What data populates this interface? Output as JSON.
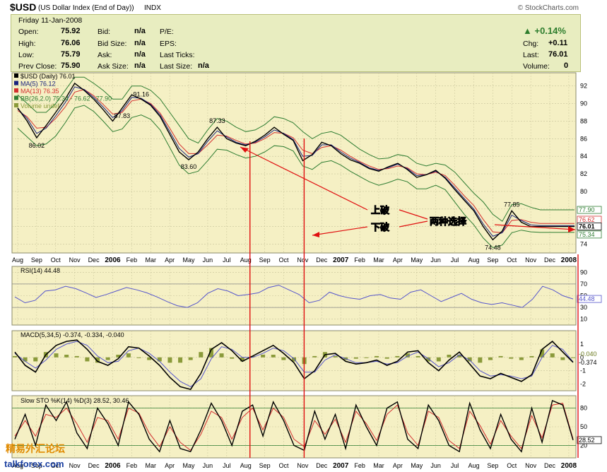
{
  "header": {
    "symbol": "$USD",
    "name": "(US Dollar Index (End of Day))",
    "exchange": "INDX",
    "brand": "© StockCharts.com"
  },
  "quote": {
    "date": "Friday  11-Jan-2008",
    "open_label": "Open:",
    "open": "75.92",
    "high_label": "High:",
    "high": "76.06",
    "low_label": "Low:",
    "low": "75.79",
    "prev_label": "Prev Close:",
    "prev": "75.90",
    "bid_label": "Bid:",
    "bid": "n/a",
    "bidsize_label": "Bid Size:",
    "bidsize": "n/a",
    "ask_label": "Ask:",
    "ask": "n/a",
    "asksize_label": "Ask Size:",
    "asksize": "n/a",
    "pe_label": "P/E:",
    "eps_label": "EPS:",
    "lastticks_label": "Last Ticks:",
    "lastsize_label": "Last Size:",
    "lastsize": "n/a",
    "pct_change": "+0.14%",
    "chg_label": "Chg:",
    "chg": "+0.11",
    "last_label": "Last:",
    "last": "76.01",
    "vol_label": "Volume:",
    "vol": "0",
    "up_color": "#2d7d2d"
  },
  "colors": {
    "panel_bg": "#f5f0c4",
    "grid": "#c8c39a",
    "price": "#000000",
    "ma5": "#1a237e",
    "ma13": "#d32f2f",
    "bb": "#2e7d32",
    "rsi": "#5555cc",
    "macd": "#000000",
    "signal": "#5555cc",
    "hist": "#8a9a3a",
    "sto_k": "#000000",
    "sto_d": "#d32f2f",
    "annotation": "#e01010"
  },
  "chart_data": [
    {
      "type": "line",
      "panel": "price",
      "legend": [
        "$USD (Daily) 76.01",
        "MA(5) 76.12",
        "MA(13) 76.35",
        "BB(26,2.0) 75.34 - 76.62 - 77.90",
        "Volume undef"
      ],
      "y_ticks": [
        74,
        76,
        78,
        80,
        82,
        84,
        86,
        88,
        90,
        92
      ],
      "ylim": [
        73,
        93.5
      ],
      "x_ticks": [
        "Aug",
        "Sep",
        "Oct",
        "Nov",
        "Dec",
        "2006",
        "Feb",
        "Mar",
        "Apr",
        "May",
        "Jun",
        "Jul",
        "Aug",
        "Sep",
        "Oct",
        "Nov",
        "Dec",
        "2007",
        "Feb",
        "Mar",
        "Apr",
        "May",
        "Jun",
        "Jul",
        "Aug",
        "Sep",
        "Oct",
        "Nov",
        "Dec",
        "2008"
      ],
      "x": [
        0,
        0.5,
        1,
        1.5,
        2,
        2.5,
        3,
        3.5,
        4,
        4.5,
        5,
        5.5,
        6,
        6.5,
        7,
        7.5,
        8,
        8.5,
        9,
        9.5,
        10,
        10.5,
        11,
        11.5,
        12,
        12.5,
        13,
        13.5,
        14,
        14.5,
        15,
        15.5,
        16,
        16.5,
        17,
        17.5,
        18,
        18.5,
        19,
        19.5,
        20,
        20.5,
        21,
        21.5,
        22,
        22.5,
        23,
        23.5,
        24,
        24.5,
        25,
        25.5,
        26,
        26.5,
        27,
        27.5,
        28,
        28.5,
        29,
        29.3
      ],
      "close": [
        89.5,
        88,
        86.1,
        87.5,
        89,
        90.5,
        92.3,
        91.5,
        90.5,
        89.3,
        88,
        89.5,
        91,
        90.5,
        89.8,
        88.5,
        86.5,
        84.5,
        83.6,
        84.5,
        86,
        87.3,
        86,
        85.5,
        85.2,
        85.7,
        86.4,
        87.3,
        86.5,
        85.8,
        83.5,
        84.2,
        85.6,
        85.2,
        84.3,
        83.6,
        83.2,
        82.6,
        82.3,
        82.8,
        83.2,
        82.5,
        81.6,
        81.9,
        82.4,
        81.5,
        80.2,
        79,
        77.8,
        76,
        74.5,
        75.5,
        77.8,
        76.5,
        76.0,
        76.01,
        76.01,
        76.01,
        76.01,
        76.01
      ],
      "ma5": [
        89.4,
        88.3,
        86.6,
        87.2,
        88.6,
        90.1,
        91.9,
        91.6,
        90.7,
        89.6,
        88.4,
        89.2,
        90.7,
        90.6,
        89.9,
        88.7,
        86.8,
        84.9,
        83.9,
        84.3,
        85.7,
        86.9,
        86.2,
        85.6,
        85.3,
        85.6,
        86.2,
        87.0,
        86.6,
        85.9,
        84,
        84.1,
        85.3,
        85.3,
        84.5,
        83.8,
        83.3,
        82.7,
        82.4,
        82.7,
        83.1,
        82.6,
        81.8,
        81.9,
        82.3,
        81.6,
        80.4,
        79.2,
        78.0,
        76.3,
        74.9,
        75.3,
        77.3,
        76.7,
        76.2,
        76.12,
        76.12,
        76.12,
        76.12,
        76.12
      ],
      "ma13": [
        89.2,
        88.5,
        87.2,
        87.3,
        88.3,
        89.6,
        91.3,
        91.6,
        90.9,
        89.9,
        88.8,
        89.0,
        90.3,
        90.5,
        90.0,
        88.9,
        87.2,
        85.4,
        84.3,
        84.3,
        85.3,
        86.4,
        86.3,
        85.8,
        85.4,
        85.5,
        86.0,
        86.7,
        86.6,
        86.1,
        84.7,
        84.3,
        85.0,
        85.2,
        84.7,
        84.0,
        83.4,
        82.9,
        82.5,
        82.6,
        82.9,
        82.7,
        82.0,
        81.9,
        82.2,
        81.8,
        80.7,
        79.5,
        78.4,
        76.8,
        75.4,
        75.3,
        76.7,
        76.8,
        76.5,
        76.35,
        76.35,
        76.35,
        76.35,
        76.35
      ],
      "bb_upper": [
        91,
        90,
        89,
        89,
        90,
        91.5,
        93,
        93,
        92.3,
        91.5,
        90.5,
        90.5,
        92,
        92,
        91.5,
        90.5,
        89,
        87.5,
        86,
        85.5,
        87,
        88.3,
        88,
        87.3,
        86.8,
        87,
        87.6,
        88.5,
        88.3,
        87.8,
        86.8,
        86,
        86.6,
        86.8,
        86.4,
        85.6,
        84.8,
        84.2,
        83.7,
        83.8,
        84.2,
        84,
        83.2,
        82.9,
        83.2,
        83,
        82.2,
        81,
        79.8,
        78.8,
        77.4,
        76.6,
        78.5,
        78.6,
        78.2,
        77.9,
        77.9,
        77.9,
        77.9,
        77.9
      ],
      "bb_lower": [
        87.2,
        86.2,
        85.2,
        85.4,
        86.3,
        87.8,
        89.5,
        89.8,
        89.1,
        88,
        86.8,
        87.1,
        88.4,
        88.7,
        88.2,
        87,
        85,
        83,
        82,
        82.3,
        83.5,
        84.8,
        84.7,
        84.2,
        83.8,
        84,
        84.5,
        85.2,
        85.1,
        84.6,
        82.9,
        82.5,
        83.3,
        83.5,
        83,
        82.3,
        81.7,
        81.1,
        80.7,
        81,
        81.4,
        81.1,
        80.3,
        80.3,
        80.7,
        80.2,
        78.8,
        77.4,
        76.2,
        74.7,
        73.6,
        73.9,
        75.3,
        75.6,
        75.4,
        75.34,
        75.34,
        75.34,
        75.34,
        75.34
      ],
      "annotations": [
        {
          "label": "86.02"
        },
        {
          "label": "91.16"
        },
        {
          "label": "87.83"
        },
        {
          "label": "83.60"
        },
        {
          "label": "87.33"
        },
        {
          "label": "77.85"
        },
        {
          "label": "74.48"
        }
      ],
      "right_labels": [
        "77.90",
        "76.62",
        "76.01",
        "75.34"
      ],
      "callouts": {
        "up_break": "上破",
        "down_break": "下破",
        "two_choices": "两种选择"
      }
    },
    {
      "type": "line",
      "panel": "rsi",
      "legend": "RSI(14) 44.48",
      "y_ticks": [
        10,
        30,
        50,
        70,
        90
      ],
      "ylim": [
        0,
        100
      ],
      "last_label": "44.48",
      "values": [
        48,
        38,
        42,
        58,
        60,
        66,
        62,
        55,
        47,
        52,
        58,
        64,
        60,
        55,
        48,
        40,
        33,
        30,
        38,
        54,
        62,
        58,
        50,
        52,
        55,
        64,
        68,
        60,
        52,
        38,
        42,
        56,
        50,
        46,
        44,
        50,
        52,
        46,
        44,
        56,
        60,
        50,
        40,
        47,
        54,
        44,
        38,
        35,
        38,
        34,
        30,
        44,
        66,
        60,
        50,
        44.48
      ]
    },
    {
      "type": "line",
      "panel": "macd",
      "legend": "MACD(5,34,5) -0.374, -0.334, -0.040",
      "y_ticks": [
        -2,
        -1,
        0,
        1
      ],
      "ylim": [
        -2.5,
        2
      ],
      "last_labels": [
        "-0.040",
        "-0.374"
      ],
      "macd": [
        0.4,
        -0.6,
        -1.1,
        0.2,
        0.9,
        1.2,
        1.3,
        0.6,
        -0.3,
        -0.6,
        -0.1,
        0.8,
        0.7,
        0.1,
        -0.6,
        -1.5,
        -2.2,
        -2.4,
        -1.2,
        0.6,
        1.1,
        0.5,
        -0.3,
        0.1,
        0.5,
        0.9,
        0.3,
        -0.4,
        -1.6,
        -1.0,
        0.2,
        0.3,
        -0.3,
        -0.5,
        -0.4,
        -0.2,
        -0.6,
        -0.3,
        0.4,
        0.5,
        -0.4,
        -1.0,
        -0.2,
        0.4,
        -0.5,
        -1.4,
        -1.6,
        -1.2,
        -1.5,
        -1.8,
        -1.3,
        0.6,
        1.2,
        0.4,
        -0.374
      ],
      "signal": [
        0.3,
        -0.3,
        -0.8,
        -0.2,
        0.6,
        1.0,
        1.2,
        0.9,
        0.1,
        -0.4,
        -0.3,
        0.5,
        0.7,
        0.3,
        -0.3,
        -1.1,
        -1.8,
        -2.2,
        -1.6,
        -0.1,
        0.8,
        0.6,
        0.0,
        0.0,
        0.3,
        0.7,
        0.5,
        -0.1,
        -1.1,
        -1.1,
        -0.2,
        0.2,
        -0.1,
        -0.4,
        -0.4,
        -0.3,
        -0.5,
        -0.4,
        0.1,
        0.4,
        -0.1,
        -0.7,
        -0.4,
        0.2,
        -0.2,
        -1.0,
        -1.4,
        -1.3,
        -1.4,
        -1.6,
        -1.4,
        0.0,
        0.9,
        0.6,
        -0.334
      ]
    },
    {
      "type": "line",
      "panel": "sto",
      "legend": "Slow STO %K(14) %D(3) 28.52, 30.46",
      "y_ticks": [
        20,
        50,
        80
      ],
      "ylim": [
        0,
        100
      ],
      "last_label": "28.52",
      "k": [
        30,
        70,
        20,
        85,
        60,
        90,
        40,
        15,
        80,
        55,
        20,
        90,
        70,
        30,
        10,
        60,
        15,
        10,
        45,
        88,
        60,
        20,
        75,
        85,
        35,
        90,
        60,
        20,
        12,
        75,
        30,
        70,
        15,
        85,
        50,
        20,
        80,
        90,
        30,
        15,
        85,
        60,
        20,
        10,
        88,
        45,
        15,
        70,
        30,
        10,
        80,
        25,
        92,
        85,
        28.52
      ],
      "d": [
        35,
        60,
        35,
        70,
        65,
        80,
        55,
        25,
        65,
        60,
        30,
        80,
        72,
        40,
        18,
        50,
        25,
        12,
        38,
        75,
        65,
        30,
        65,
        80,
        45,
        80,
        65,
        30,
        18,
        60,
        38,
        62,
        25,
        75,
        55,
        28,
        70,
        85,
        40,
        20,
        75,
        65,
        28,
        15,
        75,
        52,
        22,
        60,
        35,
        15,
        68,
        32,
        85,
        88,
        30.46
      ]
    }
  ],
  "watermark": {
    "text_cn": "精易外汇论坛",
    "text_url": "talkforex.com"
  }
}
